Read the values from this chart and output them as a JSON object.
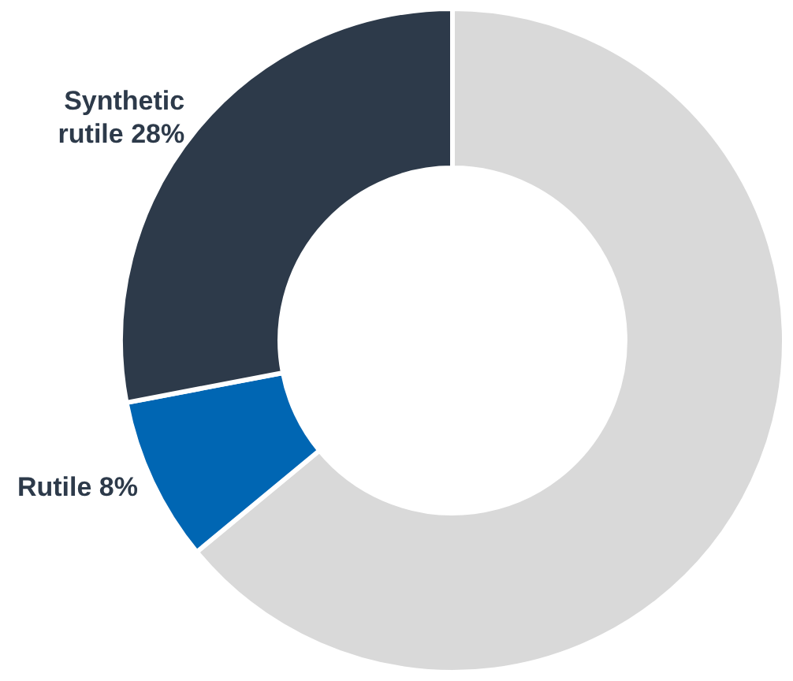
{
  "chart_data": {
    "type": "donut",
    "categories": [
      null,
      "Rutile",
      "Synthetic rutile"
    ],
    "values": [
      64,
      8,
      28
    ],
    "colors": [
      "#d9d9d9",
      "#0066b3",
      "#2d3a4a"
    ],
    "value_labels": [
      null,
      "8%",
      "28%"
    ]
  }
}
